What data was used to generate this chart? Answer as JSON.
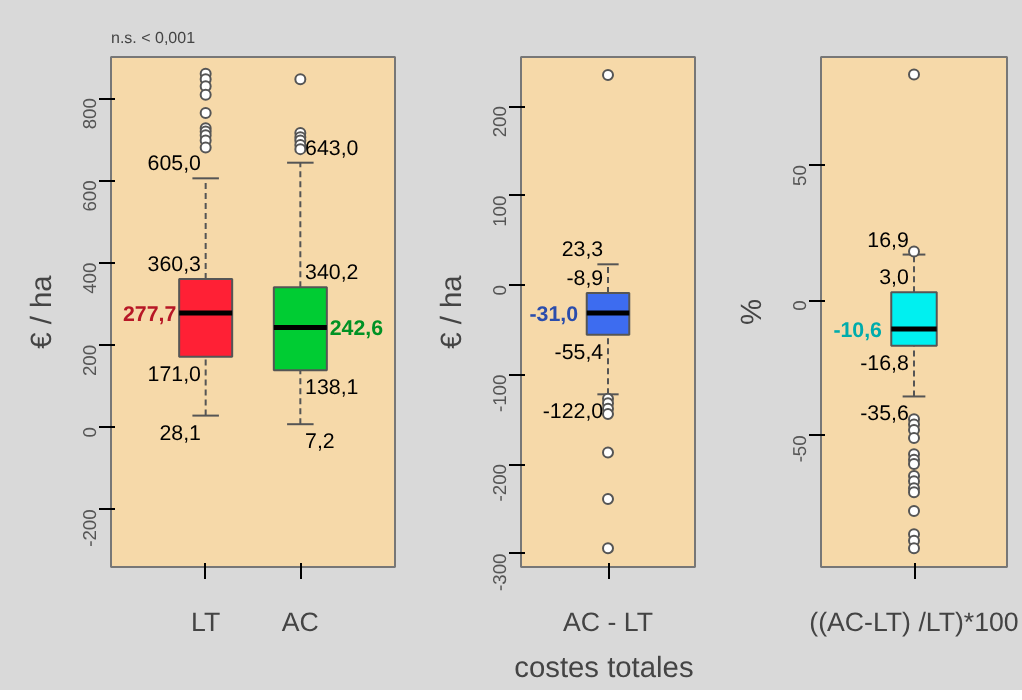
{
  "chart_data": [
    {
      "type": "box",
      "categories": [
        "LT",
        "AC"
      ],
      "ylabel": "€ / ha",
      "ylim": [
        -340,
        900
      ],
      "yticks": [
        -200,
        0,
        200,
        400,
        600,
        800
      ],
      "colors": [
        "#ff2035",
        "#00cc33"
      ],
      "boxes": [
        {
          "low": 28.1,
          "q1": 171.0,
          "median": 277.7,
          "q3": 360.3,
          "high": 605.0,
          "outliers": [
            859,
            846,
            829,
            808,
            764,
            727,
            719,
            710,
            697,
            680
          ]
        },
        {
          "low": 7.2,
          "q1": 138.1,
          "median": 242.6,
          "q3": 340.2,
          "high": 643.0,
          "outliers": [
            846,
            715,
            705,
            697,
            686,
            676
          ]
        }
      ],
      "annotations": [
        "n.s. < 0,001",
        "605,0",
        "360,3",
        "277,7",
        "171,0",
        "28,1",
        "643,0",
        "340,2",
        "242,6",
        "138,1",
        "7,2"
      ]
    },
    {
      "type": "box",
      "categories": [
        "AC - LT"
      ],
      "ylabel": "€ / ha",
      "xlabel": "costes  totales",
      "ylim": [
        -315,
        255
      ],
      "yticks": [
        -300,
        -200,
        -100,
        0,
        100,
        200
      ],
      "colors": [
        "#3d6cf0"
      ],
      "boxes": [
        {
          "low": -122.0,
          "q1": -55.4,
          "median": -31.0,
          "q3": -8.9,
          "high": 23.3,
          "outliers": [
            235,
            -127,
            -132,
            -138,
            -144,
            -187,
            -239,
            -294
          ]
        }
      ],
      "annotations": [
        "23,3",
        "-8,9",
        "-31,0",
        "-55,4",
        "-122,0"
      ]
    },
    {
      "type": "box",
      "categories": [
        "((AC-LT) /LT)*100"
      ],
      "ylabel": "%",
      "ylim": [
        -98.7,
        90
      ],
      "yticks": [
        -50,
        0,
        50
      ],
      "colors": [
        "#00f0f0"
      ],
      "boxes": [
        {
          "low": -35.6,
          "q1": -16.8,
          "median": -10.6,
          "q3": 3.0,
          "high": 16.9,
          "outliers": [
            83.5,
            18,
            -44,
            -46,
            -48,
            -51,
            -57,
            -59,
            -60.6,
            -65,
            -67,
            -69.6,
            -71,
            -78,
            -86.6,
            -89,
            -91.8
          ]
        }
      ],
      "annotations": [
        "16,9",
        "3,0",
        "-10,6",
        "-16,8",
        "-35,6"
      ]
    }
  ]
}
